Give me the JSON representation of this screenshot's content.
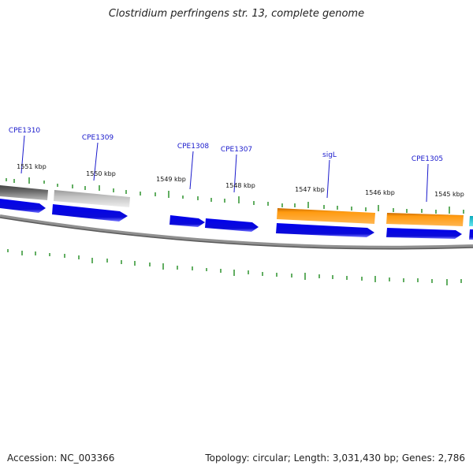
{
  "title": "Clostridium perfringens str. 13, complete genome",
  "footer": {
    "accession": "Accession: NC_003366",
    "summary": "Topology: circular; Length: 3,031,430 bp; Genes: 2,786"
  },
  "colors": {
    "backbone": "#808080",
    "tick": "#1e8c1e",
    "gene_label": "#1a1acc",
    "cds_blue": "#0a0ae0",
    "cds_orange": "#f5910a",
    "pseudo_dark_gray": "#666666",
    "pseudo_light_gray": "#bdbdbd",
    "cyan": "#22c8d8"
  },
  "gene_labels": [
    {
      "text": "CPE1310"
    },
    {
      "text": "CPE1309"
    },
    {
      "text": "CPE1308"
    },
    {
      "text": "CPE1307"
    },
    {
      "text": "sigL"
    },
    {
      "text": "CPE1305"
    }
  ],
  "kbp_labels": [
    {
      "text": "1551 kbp"
    },
    {
      "text": "1550 kbp"
    },
    {
      "text": "1549 kbp"
    },
    {
      "text": "1548 kbp"
    },
    {
      "text": "1547 kbp"
    },
    {
      "text": "1546 kbp"
    },
    {
      "text": "1545 kbp"
    }
  ]
}
